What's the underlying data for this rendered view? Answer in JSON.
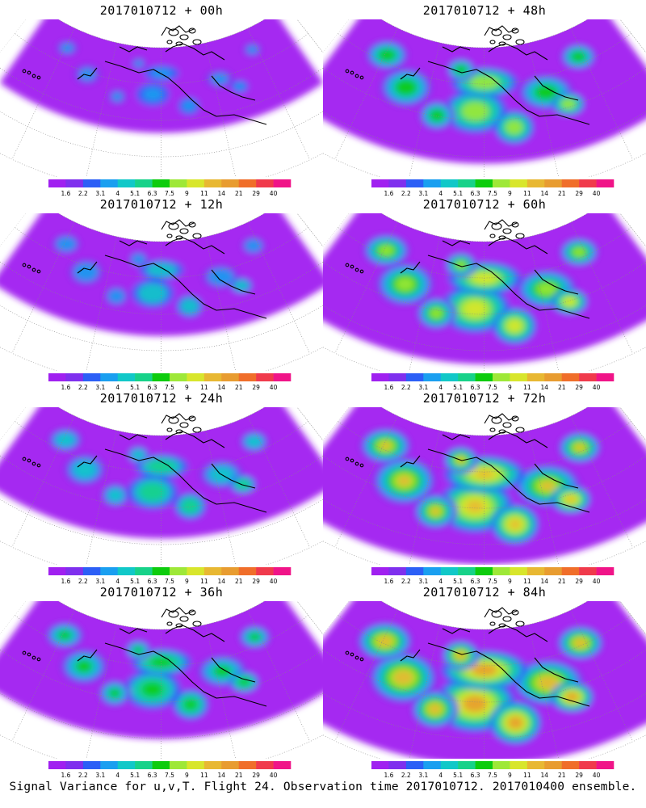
{
  "panels": [
    {
      "title": "2017010712 + 00h",
      "intensity": 0.08
    },
    {
      "title": "2017010712 + 48h",
      "intensity": 0.55
    },
    {
      "title": "2017010712 + 12h",
      "intensity": 0.22
    },
    {
      "title": "2017010712 + 60h",
      "intensity": 0.65
    },
    {
      "title": "2017010712 + 24h",
      "intensity": 0.35
    },
    {
      "title": "2017010712 + 72h",
      "intensity": 0.75
    },
    {
      "title": "2017010712 + 36h",
      "intensity": 0.45
    },
    {
      "title": "2017010712 + 84h",
      "intensity": 0.85
    }
  ],
  "legend": {
    "labels": [
      "1.6",
      "2.2",
      "3.1",
      "4",
      "5.1",
      "6.3",
      "7.5",
      "9",
      "11",
      "14",
      "21",
      "29",
      "40"
    ],
    "colors": [
      "#a020f0",
      "#7f30ee",
      "#2c5ff6",
      "#1a9ff0",
      "#11c8c8",
      "#17d289",
      "#0dcc0d",
      "#9ee838",
      "#d8e62c",
      "#e8b832",
      "#e89c30",
      "#f06e2a",
      "#f03a4c",
      "#f01488"
    ]
  },
  "caption": "Signal Variance for u,v,T. Flight 24. Observation time 2017010712. 2017010400 ensemble."
}
